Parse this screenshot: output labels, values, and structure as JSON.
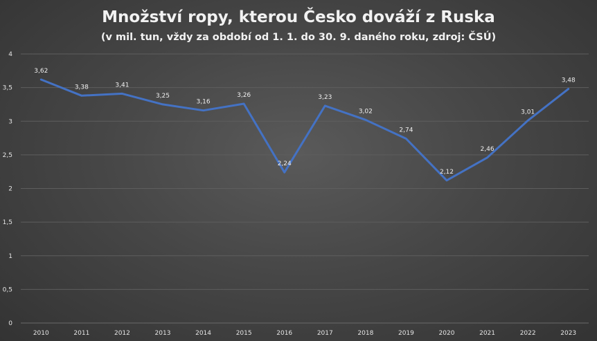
{
  "chart_data": {
    "type": "line",
    "title": "Množství ropy, kterou Česko dováží z Ruska",
    "subtitle": "(v mil. tun, vždy za období od 1. 1. do 30. 9. daného roku, zdroj: ČSÚ)",
    "xlabel": "",
    "ylabel": "",
    "categories": [
      "2010",
      "2011",
      "2012",
      "2013",
      "2014",
      "2015",
      "2016",
      "2017",
      "2018",
      "2019",
      "2020",
      "2021",
      "2022",
      "2023"
    ],
    "series": [
      {
        "values": [
          3.62,
          3.38,
          3.41,
          3.25,
          3.16,
          3.26,
          2.24,
          3.23,
          3.02,
          2.74,
          2.12,
          2.46,
          3.01,
          3.48
        ],
        "data_labels": [
          "3,62",
          "3,38",
          "3,41",
          "3,25",
          "3,16",
          "3,26",
          "2,24",
          "3,23",
          "3,02",
          "2,74",
          "2,12",
          "2,46",
          "3,01",
          "3,48"
        ],
        "color": "#4472c4"
      }
    ],
    "ylim": [
      0,
      4
    ],
    "y_ticks": [
      0,
      0.5,
      1,
      1.5,
      2,
      2.5,
      3,
      3.5,
      4
    ],
    "y_tick_labels": [
      "0",
      "0,5",
      "1",
      "1,5",
      "2",
      "2,5",
      "3",
      "3,5",
      "4"
    ],
    "grid": true,
    "legend": "none"
  },
  "colors": {
    "line": "#4472c4",
    "text": "#f2f2f2",
    "grid": "#5e5e5e"
  }
}
